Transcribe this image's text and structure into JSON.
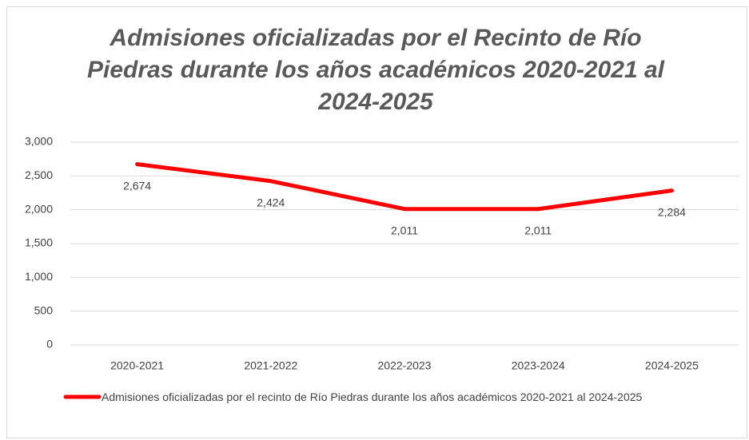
{
  "chart_data": {
    "type": "line",
    "title": "Admisiones oficializadas por el Recinto de Río Piedras durante los años académicos 2020-2021 al 2024-2025",
    "categories": [
      "2020-2021",
      "2021-2022",
      "2022-2023",
      "2023-2024",
      "2024-2025"
    ],
    "series": [
      {
        "name": "Admisiones oficializadas por el recinto de Río Piedras durante los años académicos 2020-2021 al 2024-2025",
        "color": "#ff0000",
        "values": [
          2674,
          2424,
          2011,
          2011,
          2284
        ],
        "value_labels": [
          "2,674",
          "2,424",
          "2,011",
          "2,011",
          "2,284"
        ]
      }
    ],
    "ylim": [
      0,
      3000
    ],
    "yticks": [
      0,
      500,
      {
        "value": 1000,
        "label": "1,000"
      },
      {
        "value": 1500,
        "label": "1,500"
      },
      {
        "value": 2000,
        "label": "2,000"
      },
      {
        "value": 2500,
        "label": "2,500"
      },
      {
        "value": 3000,
        "label": "3,000"
      }
    ],
    "grid": true,
    "legend": "bottom"
  }
}
